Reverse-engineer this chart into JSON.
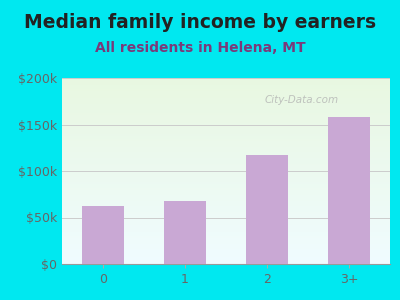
{
  "title": "Median family income by earners",
  "subtitle": "All residents in Helena, MT",
  "categories": [
    "0",
    "1",
    "2",
    "3+"
  ],
  "values": [
    62000,
    68000,
    117000,
    158000
  ],
  "bar_color": "#c9a8d4",
  "title_fontsize": 13.5,
  "subtitle_fontsize": 10,
  "title_color": "#222222",
  "subtitle_color": "#7a3a7a",
  "background_outer": "#00e8f0",
  "ylim": [
    0,
    200000
  ],
  "yticks": [
    0,
    50000,
    100000,
    150000,
    200000
  ],
  "ytick_labels": [
    "$0",
    "$50k",
    "$100k",
    "$150k",
    "$200k"
  ],
  "watermark": "City-Data.com",
  "grid_color": "#cccccc",
  "axis_label_color": "#666666"
}
